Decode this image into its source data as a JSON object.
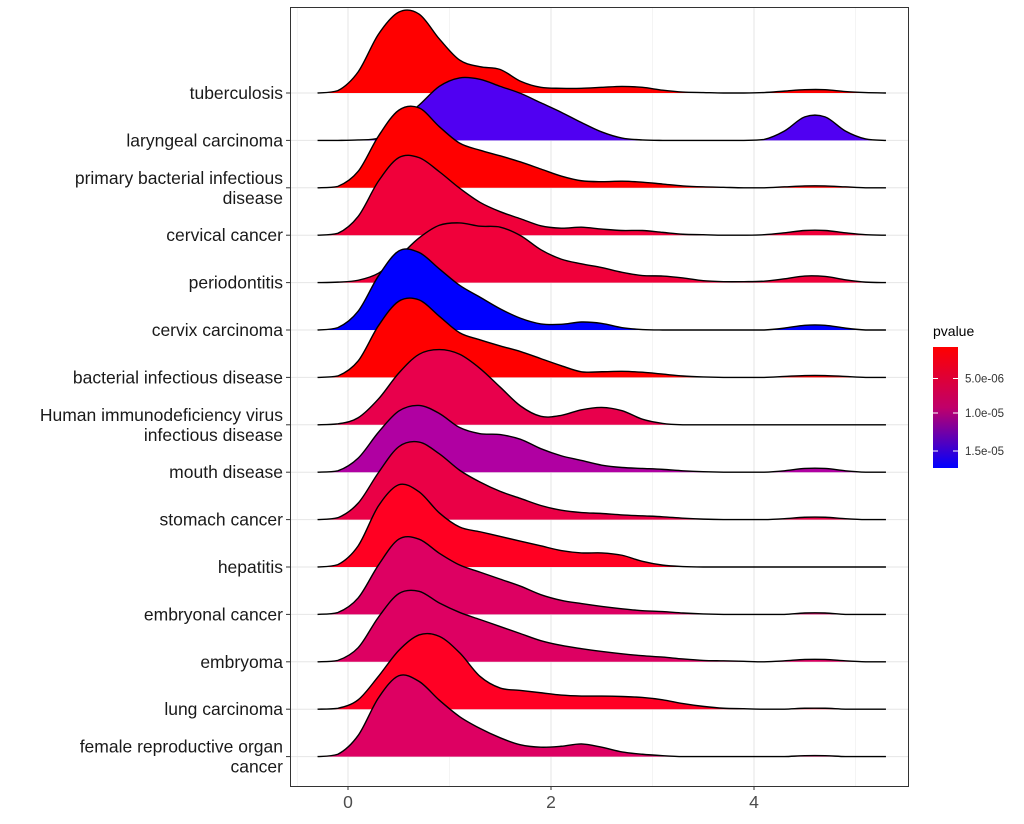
{
  "chart_data": {
    "type": "ridgeline",
    "title": "",
    "xlabel": "",
    "ylabel": "",
    "xlim": [
      -0.6,
      5.5
    ],
    "x_ticks": [
      0,
      2,
      4
    ],
    "x_tick_labels": [
      "0",
      "2",
      "4"
    ],
    "grid": true,
    "legend": {
      "title": "pvalue",
      "placement": "right",
      "tick_labels": [
        "5.0e-06",
        "1.0e-05",
        "1.5e-05"
      ],
      "colors": [
        "#FF0000",
        "#0000FF"
      ]
    },
    "density_x": [
      -0.3,
      -0.1,
      0.1,
      0.3,
      0.5,
      0.7,
      0.9,
      1.1,
      1.3,
      1.5,
      1.7,
      1.9,
      2.1,
      2.3,
      2.5,
      2.7,
      2.9,
      3.1,
      3.3,
      3.5,
      3.7,
      3.9,
      4.1,
      4.3,
      4.5,
      4.7,
      4.9,
      5.1,
      5.3
    ],
    "series": [
      {
        "label": "tuberculosis",
        "color": "#FF0000",
        "density": [
          0,
          0.05,
          0.45,
          1.25,
          1.72,
          1.68,
          1.15,
          0.7,
          0.56,
          0.5,
          0.25,
          0.12,
          0.1,
          0.1,
          0.12,
          0.14,
          0.12,
          0.06,
          0.02,
          0.01,
          0,
          0,
          0.01,
          0.04,
          0.07,
          0.07,
          0.03,
          0.01,
          0
        ]
      },
      {
        "label": "laryngeal carcinoma",
        "color": "#5000F2",
        "density": [
          0,
          0,
          0.01,
          0.05,
          0.4,
          0.75,
          1.15,
          1.33,
          1.3,
          1.15,
          1.0,
          0.8,
          0.6,
          0.38,
          0.18,
          0.05,
          0.01,
          0,
          0,
          0,
          0,
          0,
          0.02,
          0.2,
          0.5,
          0.5,
          0.2,
          0.03,
          0
        ]
      },
      {
        "label": "primary bacterial infectious\ndisease",
        "color": "#FF0000",
        "density": [
          0,
          0.03,
          0.35,
          1.1,
          1.65,
          1.7,
          1.3,
          0.95,
          0.8,
          0.68,
          0.55,
          0.4,
          0.25,
          0.15,
          0.13,
          0.14,
          0.12,
          0.08,
          0.04,
          0.02,
          0.01,
          0,
          0,
          0.02,
          0.04,
          0.04,
          0.02,
          0,
          0
        ]
      },
      {
        "label": "cervical cancer",
        "color": "#F0003A",
        "density": [
          0,
          0.04,
          0.4,
          1.15,
          1.65,
          1.65,
          1.35,
          1.0,
          0.7,
          0.5,
          0.35,
          0.2,
          0.15,
          0.17,
          0.13,
          0.1,
          0.1,
          0.06,
          0.02,
          0.01,
          0,
          0,
          0.01,
          0.05,
          0.1,
          0.1,
          0.05,
          0.01,
          0
        ]
      },
      {
        "label": "periodontitis",
        "color": "#F0003A",
        "density": [
          0,
          0.01,
          0.05,
          0.2,
          0.55,
          0.95,
          1.22,
          1.27,
          1.2,
          1.18,
          1.0,
          0.7,
          0.5,
          0.4,
          0.32,
          0.22,
          0.15,
          0.14,
          0.1,
          0.04,
          0.02,
          0.02,
          0.03,
          0.08,
          0.14,
          0.13,
          0.06,
          0.01,
          0
        ]
      },
      {
        "label": "cervix carcinoma",
        "color": "#0000FF",
        "density": [
          0,
          0.05,
          0.4,
          1.15,
          1.68,
          1.65,
          1.3,
          0.95,
          0.7,
          0.45,
          0.25,
          0.13,
          0.12,
          0.17,
          0.14,
          0.05,
          0.01,
          0,
          0,
          0,
          0,
          0,
          0,
          0.04,
          0.1,
          0.1,
          0.04,
          0,
          0
        ]
      },
      {
        "label": "bacterial infectious disease",
        "color": "#FF0000",
        "density": [
          0,
          0.03,
          0.35,
          1.1,
          1.62,
          1.65,
          1.3,
          0.95,
          0.8,
          0.67,
          0.55,
          0.4,
          0.25,
          0.12,
          0.12,
          0.13,
          0.11,
          0.07,
          0.03,
          0.01,
          0,
          0,
          0,
          0.02,
          0.04,
          0.04,
          0.02,
          0,
          0
        ]
      },
      {
        "label": "Human immunodeficiency virus\ninfectious disease",
        "color": "#E8004C",
        "density": [
          0,
          0.02,
          0.15,
          0.55,
          1.1,
          1.5,
          1.6,
          1.5,
          1.2,
          0.8,
          0.4,
          0.18,
          0.2,
          0.32,
          0.37,
          0.3,
          0.12,
          0.03,
          0,
          0,
          0,
          0,
          0,
          0,
          0,
          0,
          0,
          0,
          0
        ]
      },
      {
        "label": "mouth disease",
        "color": "#B000A2",
        "density": [
          0,
          0.03,
          0.3,
          0.85,
          1.3,
          1.42,
          1.25,
          0.95,
          0.82,
          0.8,
          0.7,
          0.5,
          0.35,
          0.25,
          0.15,
          0.1,
          0.08,
          0.06,
          0.03,
          0.01,
          0,
          0,
          0,
          0.03,
          0.08,
          0.08,
          0.03,
          0,
          0
        ]
      },
      {
        "label": "stomach cancer",
        "color": "#EA0046",
        "density": [
          0,
          0.04,
          0.35,
          1.0,
          1.55,
          1.65,
          1.4,
          1.05,
          0.8,
          0.6,
          0.45,
          0.3,
          0.2,
          0.15,
          0.13,
          0.1,
          0.08,
          0.06,
          0.03,
          0.01,
          0,
          0,
          0,
          0.02,
          0.05,
          0.05,
          0.02,
          0,
          0
        ]
      },
      {
        "label": "hepatitis",
        "color": "#FF0022",
        "density": [
          0,
          0.05,
          0.45,
          1.3,
          1.75,
          1.6,
          1.15,
          0.85,
          0.75,
          0.65,
          0.55,
          0.45,
          0.35,
          0.3,
          0.3,
          0.25,
          0.12,
          0.04,
          0.01,
          0,
          0,
          0,
          0,
          0,
          0,
          0,
          0,
          0,
          0
        ]
      },
      {
        "label": "embryonal cancer",
        "color": "#DD0062",
        "density": [
          0,
          0.04,
          0.35,
          1.05,
          1.6,
          1.6,
          1.3,
          1.05,
          0.9,
          0.75,
          0.6,
          0.42,
          0.3,
          0.23,
          0.17,
          0.12,
          0.08,
          0.06,
          0.03,
          0.01,
          0,
          0,
          0,
          0,
          0.03,
          0.03,
          0,
          0,
          0
        ]
      },
      {
        "label": "embryoma",
        "color": "#DD0062",
        "density": [
          0,
          0.03,
          0.3,
          0.95,
          1.45,
          1.5,
          1.25,
          1.05,
          0.9,
          0.75,
          0.6,
          0.45,
          0.35,
          0.28,
          0.22,
          0.17,
          0.13,
          0.1,
          0.06,
          0.03,
          0.02,
          0.01,
          0,
          0.02,
          0.05,
          0.05,
          0.02,
          0,
          0
        ]
      },
      {
        "label": "lung carcinoma",
        "color": "#FF0024",
        "density": [
          0,
          0.02,
          0.2,
          0.7,
          1.25,
          1.58,
          1.55,
          1.2,
          0.7,
          0.45,
          0.4,
          0.35,
          0.3,
          0.28,
          0.28,
          0.27,
          0.25,
          0.2,
          0.12,
          0.06,
          0.02,
          0.01,
          0,
          0,
          0.02,
          0.02,
          0,
          0,
          0
        ]
      },
      {
        "label": "female reproductive organ\ncancer",
        "color": "#DD0062",
        "density": [
          0,
          0.05,
          0.45,
          1.25,
          1.72,
          1.6,
          1.2,
          0.85,
          0.6,
          0.4,
          0.25,
          0.2,
          0.22,
          0.27,
          0.2,
          0.1,
          0.05,
          0.02,
          0,
          0,
          0,
          0,
          0,
          0,
          0.02,
          0.02,
          0,
          0,
          0
        ]
      }
    ]
  }
}
